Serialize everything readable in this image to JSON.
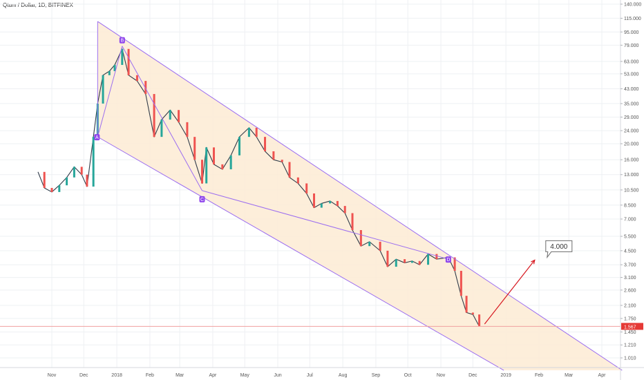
{
  "chart_data": {
    "type": "candlestick",
    "title": "Qtum / Dollar, 1D, BITFINEX",
    "y_ticks": [
      "140.000",
      "115.000",
      "95.000",
      "79.000",
      "63.000",
      "53.000",
      "43.000",
      "35.000",
      "29.000",
      "24.000",
      "20.000",
      "16.000",
      "13.000",
      "10.500",
      "8.500",
      "7.000",
      "5.500",
      "4.500",
      "3.700",
      "3.100",
      "2.600",
      "2.100",
      "1.750",
      "1.450",
      "1.210",
      "1.010"
    ],
    "x_ticks": [
      "Nov",
      "Dec",
      "2018",
      "Feb",
      "Mar",
      "Apr",
      "May",
      "Jun",
      "Jul",
      "Aug",
      "Sep",
      "Oct",
      "Nov",
      "Dec",
      "2019",
      "Feb",
      "Mar",
      "Apr"
    ],
    "log_scale": true,
    "last_price": "1.567",
    "target_label": "4.000",
    "pattern_points": [
      "A",
      "B",
      "C",
      "D"
    ],
    "price_path": [
      {
        "x": "2017-10-19",
        "y": 13.5
      },
      {
        "x": "2017-10-25",
        "y": 10.8
      },
      {
        "x": "2017-11-01",
        "y": 10.2
      },
      {
        "x": "2017-11-08",
        "y": 11.2
      },
      {
        "x": "2017-11-15",
        "y": 12.5
      },
      {
        "x": "2017-11-22",
        "y": 14.5
      },
      {
        "x": "2017-11-29",
        "y": 13.0
      },
      {
        "x": "2017-12-04",
        "y": 11.0
      },
      {
        "x": "2017-12-10",
        "y": 22.0
      },
      {
        "x": "2017-12-14",
        "y": 35.0
      },
      {
        "x": "2017-12-19",
        "y": 52.0
      },
      {
        "x": "2017-12-25",
        "y": 55.0
      },
      {
        "x": "2017-12-30",
        "y": 60.0
      },
      {
        "x": "2018-01-06",
        "y": 75.0
      },
      {
        "x": "2018-01-12",
        "y": 52.0
      },
      {
        "x": "2018-01-20",
        "y": 48.0
      },
      {
        "x": "2018-01-28",
        "y": 40.0
      },
      {
        "x": "2018-02-05",
        "y": 22.0
      },
      {
        "x": "2018-02-12",
        "y": 28.0
      },
      {
        "x": "2018-02-20",
        "y": 32.0
      },
      {
        "x": "2018-02-28",
        "y": 27.0
      },
      {
        "x": "2018-03-08",
        "y": 22.0
      },
      {
        "x": "2018-03-15",
        "y": 16.0
      },
      {
        "x": "2018-03-22",
        "y": 11.5
      },
      {
        "x": "2018-03-26",
        "y": 19.0
      },
      {
        "x": "2018-04-02",
        "y": 15.0
      },
      {
        "x": "2018-04-10",
        "y": 14.0
      },
      {
        "x": "2018-04-18",
        "y": 17.0
      },
      {
        "x": "2018-04-26",
        "y": 22.0
      },
      {
        "x": "2018-05-05",
        "y": 25.0
      },
      {
        "x": "2018-05-12",
        "y": 22.0
      },
      {
        "x": "2018-05-20",
        "y": 18.0
      },
      {
        "x": "2018-05-28",
        "y": 16.0
      },
      {
        "x": "2018-06-05",
        "y": 15.5
      },
      {
        "x": "2018-06-12",
        "y": 12.5
      },
      {
        "x": "2018-06-20",
        "y": 11.5
      },
      {
        "x": "2018-06-28",
        "y": 10.0
      },
      {
        "x": "2018-07-05",
        "y": 8.2
      },
      {
        "x": "2018-07-12",
        "y": 8.7
      },
      {
        "x": "2018-07-20",
        "y": 9.0
      },
      {
        "x": "2018-07-27",
        "y": 8.4
      },
      {
        "x": "2018-08-03",
        "y": 7.6
      },
      {
        "x": "2018-08-10",
        "y": 6.0
      },
      {
        "x": "2018-08-18",
        "y": 4.8
      },
      {
        "x": "2018-08-26",
        "y": 5.1
      },
      {
        "x": "2018-09-05",
        "y": 4.5
      },
      {
        "x": "2018-09-12",
        "y": 3.6
      },
      {
        "x": "2018-09-20",
        "y": 4.0
      },
      {
        "x": "2018-09-28",
        "y": 3.8
      },
      {
        "x": "2018-10-05",
        "y": 3.9
      },
      {
        "x": "2018-10-12",
        "y": 3.7
      },
      {
        "x": "2018-10-20",
        "y": 4.3
      },
      {
        "x": "2018-10-28",
        "y": 4.0
      },
      {
        "x": "2018-11-08",
        "y": 4.1
      },
      {
        "x": "2018-11-14",
        "y": 3.4
      },
      {
        "x": "2018-11-20",
        "y": 2.4
      },
      {
        "x": "2018-11-25",
        "y": 1.9
      },
      {
        "x": "2018-12-01",
        "y": 1.85
      },
      {
        "x": "2018-12-07",
        "y": 1.567
      }
    ],
    "colors": {
      "up": "#26a69a",
      "down": "#ef5350",
      "channel": "#9c6ef0",
      "fill": "#fdebd3",
      "arrow": "#d71921",
      "price_line": "#f0a0a0"
    }
  }
}
